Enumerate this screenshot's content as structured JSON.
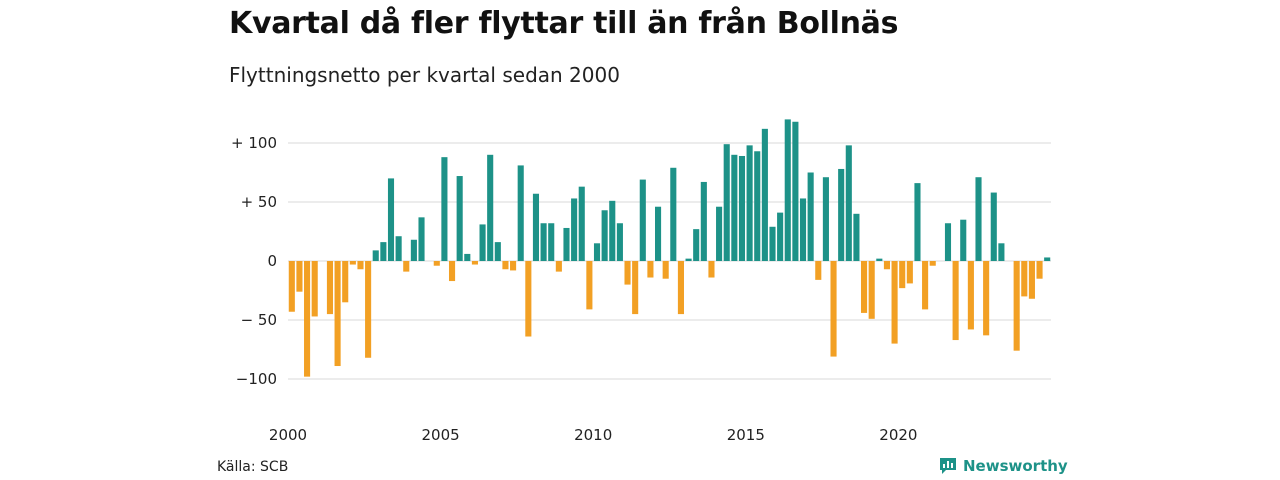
{
  "title": "Kvartal då fler flyttar till än från Bollnäs",
  "subtitle": "Flyttningsnetto per kvartal sedan 2000",
  "source": "Källa: SCB",
  "brand": "Newsworthy",
  "colors": {
    "positive": "#1d9288",
    "negative": "#f2a024",
    "grid": "#d9d9d9",
    "brand": "#1d9288"
  },
  "chart_data": {
    "type": "bar",
    "grid": true,
    "ylim": [
      -100,
      120
    ],
    "yticks": [
      {
        "value": 100,
        "label": "+ 100"
      },
      {
        "value": 50,
        "label": "+  50"
      },
      {
        "value": 0,
        "label": "0"
      },
      {
        "value": -50,
        "label": "− 50"
      },
      {
        "value": -100,
        "label": "−100"
      }
    ],
    "xticks": [
      {
        "index": 0,
        "label": "2000"
      },
      {
        "index": 20,
        "label": "2005"
      },
      {
        "index": 40,
        "label": "2010"
      },
      {
        "index": 60,
        "label": "2015"
      },
      {
        "index": 80,
        "label": "2020"
      }
    ],
    "start_period": "2000 Q1",
    "values": [
      -43,
      -26,
      -98,
      -47,
      0,
      -45,
      -89,
      -35,
      -3,
      -7,
      -82,
      9,
      16,
      70,
      21,
      -9,
      18,
      37,
      0,
      -4,
      88,
      -17,
      72,
      6,
      -3,
      31,
      90,
      16,
      -7,
      -8,
      81,
      -64,
      57,
      32,
      32,
      -9,
      28,
      53,
      63,
      -41,
      15,
      43,
      51,
      32,
      -20,
      -45,
      69,
      -14,
      46,
      -15,
      79,
      -45,
      2,
      27,
      67,
      -14,
      46,
      99,
      90,
      89,
      98,
      93,
      112,
      29,
      41,
      120,
      118,
      53,
      75,
      -16,
      71,
      -81,
      78,
      98,
      40,
      -44,
      -49,
      2,
      -7,
      -70,
      -23,
      -19,
      66,
      -41,
      -4,
      0,
      32,
      -67,
      35,
      -58,
      71,
      -63,
      58,
      15,
      0,
      -76,
      -30,
      -32,
      -15,
      3
    ]
  }
}
